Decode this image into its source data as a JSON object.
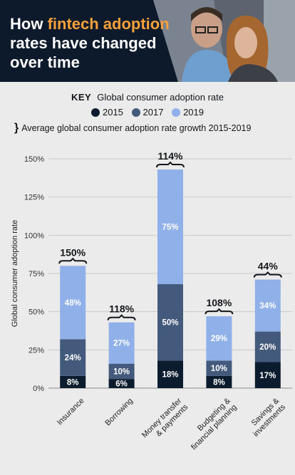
{
  "header": {
    "title_part1": "How ",
    "title_highlight": "fintech adoption",
    "title_part2": " rates have changed over time"
  },
  "legend": {
    "key_label": "KEY",
    "key_text": "Global consumer adoption rate",
    "years": [
      "2015",
      "2017",
      "2019"
    ],
    "brace_symbol": "}",
    "brace_text": "Average global consumer adoption rate growth 2015-2019"
  },
  "colors": {
    "accent": "#f5a03a",
    "header_bg": "#0d1a2b",
    "c2015": "#0c1c2f",
    "c2017": "#445a7c",
    "c2019": "#8fb0e8",
    "background": "#ebebeb"
  },
  "chart_data": {
    "type": "bar",
    "stacked": true,
    "categories": [
      [
        "Insurance"
      ],
      [
        "Borrowing"
      ],
      [
        "Money transfer",
        "& payments"
      ],
      [
        "Budgeting &",
        "financial planning"
      ],
      [
        "Savings &",
        "investments"
      ]
    ],
    "series": [
      {
        "name": "2015",
        "values": [
          8,
          6,
          18,
          8,
          17
        ],
        "labels": [
          "8%",
          "6%",
          "18%",
          "8%",
          "17%"
        ]
      },
      {
        "name": "2017",
        "values": [
          24,
          10,
          50,
          10,
          20
        ],
        "labels": [
          "24%",
          "10%",
          "50%",
          "10%",
          "20%"
        ]
      },
      {
        "name": "2019",
        "values": [
          48,
          27,
          75,
          29,
          34
        ],
        "labels": [
          "48%",
          "27%",
          "75%",
          "29%",
          "34%"
        ]
      }
    ],
    "growth_labels": [
      "150%",
      "118%",
      "114%",
      "108%",
      "44%"
    ],
    "ylabel": "Global consumer adoption rate",
    "yticks": [
      "0%",
      "25%",
      "50%",
      "75%",
      "100%",
      "125%",
      "150%"
    ],
    "ylim": [
      0,
      150
    ],
    "legend_position": "top"
  }
}
